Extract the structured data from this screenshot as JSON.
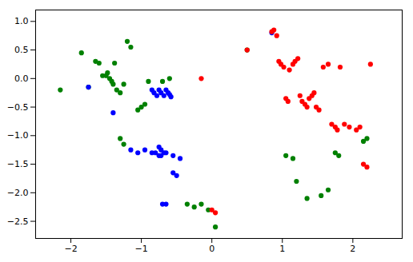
{
  "chart_data": {
    "type": "scatter",
    "series": [
      {
        "color": "#008000",
        "marker": "circle",
        "x": [
          -2.15,
          -1.85,
          -1.75,
          -1.65,
          -1.6,
          -1.55,
          -1.5,
          -1.48,
          -1.45,
          -1.42,
          -1.4,
          -1.38,
          -1.35,
          -1.3,
          -1.25,
          -1.2,
          -1.15,
          -1.05,
          -1.0,
          -0.95,
          -0.9,
          -0.7,
          -0.6,
          -1.3,
          -1.25,
          -0.35,
          -0.25,
          -0.15,
          -0.05,
          0.05,
          0.5,
          1.05,
          1.15,
          1.2,
          1.35,
          1.55,
          1.65,
          1.75,
          1.8,
          2.15,
          2.2
        ],
        "values": [
          -0.2,
          0.45,
          -0.15,
          0.3,
          0.27,
          0.05,
          0.05,
          0.1,
          0.0,
          -0.05,
          -0.1,
          0.27,
          -0.2,
          -0.25,
          -0.1,
          0.65,
          0.55,
          -0.55,
          -0.5,
          -0.45,
          -0.05,
          -0.05,
          0.0,
          -1.05,
          -1.15,
          -2.2,
          -2.25,
          -2.2,
          -2.3,
          -2.6,
          0.5,
          -1.35,
          -1.4,
          -1.8,
          -2.1,
          -2.05,
          -1.95,
          -1.3,
          -1.35,
          -1.1,
          -1.05
        ]
      },
      {
        "color": "#0000ff",
        "marker": "circle",
        "x": [
          -1.75,
          -1.4,
          -0.85,
          -0.82,
          -0.78,
          -0.75,
          -0.72,
          -0.68,
          -0.65,
          -0.62,
          -0.6,
          -0.58,
          -0.75,
          -0.72,
          -0.68,
          -0.72,
          -0.8,
          -1.15,
          -1.05,
          -0.95,
          -0.85,
          -0.75,
          -0.65,
          -0.55,
          -0.5,
          -0.45,
          -0.7,
          -0.65,
          -0.55,
          0.85
        ],
        "values": [
          -0.15,
          -0.6,
          -0.2,
          -0.25,
          -0.3,
          -0.2,
          -0.25,
          -0.3,
          -0.2,
          -0.25,
          -0.28,
          -0.32,
          -1.2,
          -1.25,
          -1.3,
          -1.35,
          -1.3,
          -1.25,
          -1.3,
          -1.25,
          -1.3,
          -1.35,
          -1.3,
          -1.35,
          -1.7,
          -1.4,
          -2.2,
          -2.2,
          -1.65,
          0.8
        ]
      },
      {
        "color": "#ff0000",
        "marker": "circle",
        "x": [
          -0.15,
          0.5,
          0.85,
          0.88,
          0.92,
          0.95,
          0.98,
          1.02,
          1.05,
          1.08,
          1.1,
          1.15,
          1.18,
          1.22,
          1.25,
          1.28,
          1.32,
          1.35,
          1.38,
          1.42,
          1.45,
          1.48,
          1.52,
          1.58,
          1.65,
          1.7,
          1.75,
          1.78,
          1.82,
          1.88,
          1.95,
          2.05,
          2.1,
          2.15,
          2.2,
          2.25,
          0.0,
          0.05
        ],
        "values": [
          0.0,
          0.5,
          0.82,
          0.85,
          0.75,
          0.3,
          0.25,
          0.2,
          -0.35,
          -0.4,
          0.15,
          0.25,
          0.3,
          0.35,
          -0.3,
          -0.4,
          -0.45,
          -0.5,
          -0.35,
          -0.3,
          -0.25,
          -0.5,
          -0.55,
          0.2,
          0.25,
          -0.8,
          -0.85,
          -0.9,
          0.2,
          -0.8,
          -0.85,
          -0.9,
          -0.85,
          -1.5,
          -1.55,
          0.25,
          -2.3,
          -2.35
        ]
      }
    ],
    "xlim": [
      -2.5,
      2.7
    ],
    "ylim": [
      -2.8,
      1.2
    ],
    "xticks": [
      -2,
      -1,
      0,
      1,
      2
    ],
    "yticks": [
      -2.5,
      {
        "value": -2.0,
        "label": "−2.0"
      },
      -1.5,
      {
        "value": -1.0,
        "label": "−1.0"
      },
      -0.5,
      {
        "value": 0.0,
        "label": "0.0"
      },
      0.5,
      {
        "value": 1.0,
        "label": "1.0"
      }
    ],
    "grid": false
  }
}
